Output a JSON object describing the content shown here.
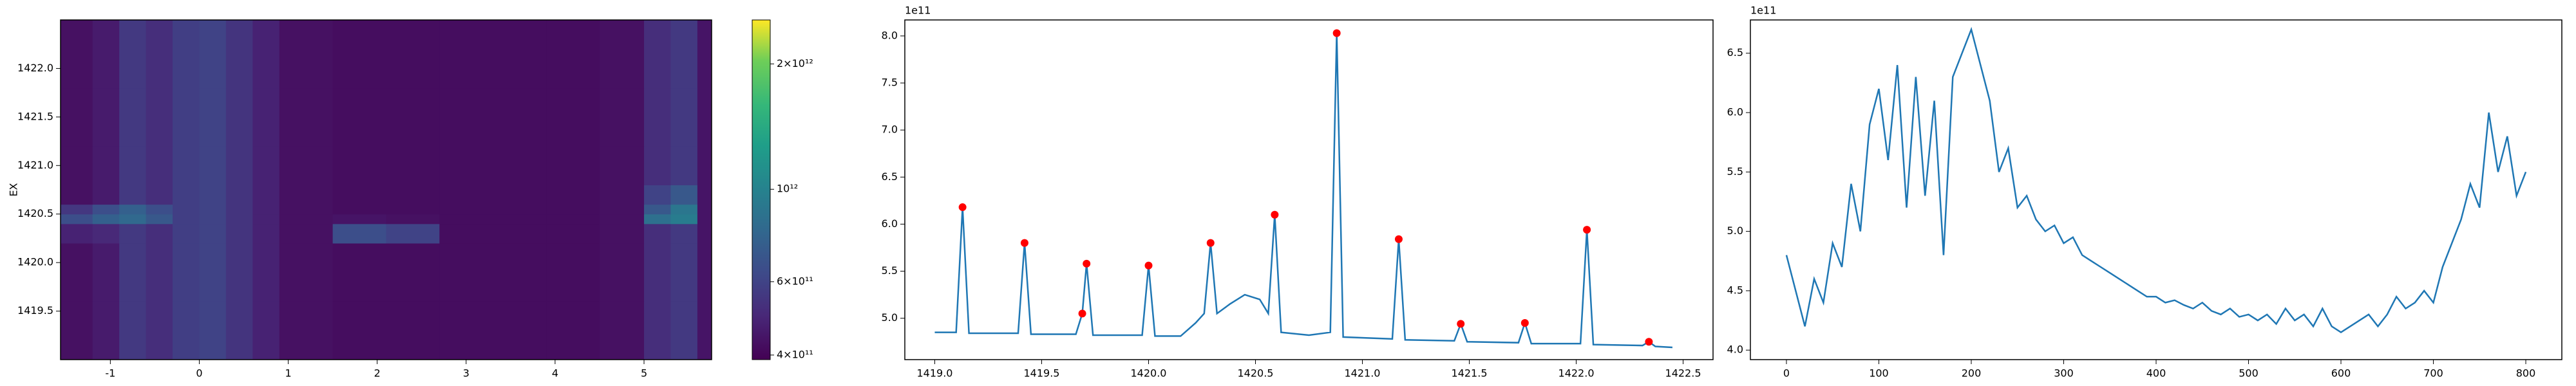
{
  "chart_data": [
    {
      "type": "heatmap",
      "y_label": "EX",
      "colormap": "viridis",
      "colorbar_log": true,
      "xlim": [
        -1.56,
        5.76
      ],
      "ylim": [
        1419.0,
        1422.5
      ],
      "xticks": [
        -1,
        0,
        1,
        2,
        3,
        4,
        5
      ],
      "yticks": [
        1419.5,
        {
          "value": 1420,
          "label": "1420.0"
        },
        1420.5,
        {
          "value": 1421,
          "label": "1421.0"
        },
        1421.5,
        {
          "value": 1422,
          "label": "1422.0"
        }
      ],
      "clim": [
        390000000000.0,
        2550000000000.0
      ],
      "cticks": [
        {
          "value": 400000000000.0,
          "label": "4×10¹¹"
        },
        {
          "value": 600000000000.0,
          "label": "6×10¹¹"
        },
        {
          "value": 1000000000000.0,
          "label": "10¹²"
        },
        {
          "value": 2000000000000.0,
          "label": "2×10¹²"
        }
      ],
      "x_edges": [
        -1.56,
        -1.2,
        -0.9,
        -0.6,
        -0.3,
        0,
        0.3,
        0.6,
        0.9,
        1.5,
        2.1,
        2.7,
        3.3,
        3.9,
        4.5,
        5.0,
        5.3,
        5.6,
        5.76
      ],
      "y_edges": [
        1419.0,
        1419.6,
        1420.2,
        1420.4,
        1420.5,
        1420.6,
        1420.8,
        1421.2,
        1421.8,
        1422.5
      ],
      "z": [
        [
          430000000000.0,
          460000000000.0,
          560000000000.0,
          520000000000.0,
          580000000000.0,
          600000000000.0,
          540000000000.0,
          480000000000.0,
          430000000000.0,
          420000000000.0,
          420000000000.0,
          420000000000.0,
          420000000000.0,
          420000000000.0,
          430000000000.0,
          520000000000.0,
          560000000000.0,
          440000000000.0
        ],
        [
          430000000000.0,
          460000000000.0,
          560000000000.0,
          520000000000.0,
          580000000000.0,
          600000000000.0,
          540000000000.0,
          480000000000.0,
          430000000000.0,
          420000000000.0,
          420000000000.0,
          420000000000.0,
          420000000000.0,
          420000000000.0,
          430000000000.0,
          520000000000.0,
          560000000000.0,
          440000000000.0
        ],
        [
          480000000000.0,
          500000000000.0,
          560000000000.0,
          520000000000.0,
          580000000000.0,
          600000000000.0,
          540000000000.0,
          480000000000.0,
          430000000000.0,
          650000000000.0,
          600000000000.0,
          420000000000.0,
          420000000000.0,
          420000000000.0,
          430000000000.0,
          520000000000.0,
          560000000000.0,
          440000000000.0
        ],
        [
          650000000000.0,
          750000000000.0,
          800000000000.0,
          700000000000.0,
          580000000000.0,
          600000000000.0,
          540000000000.0,
          480000000000.0,
          430000000000.0,
          440000000000.0,
          430000000000.0,
          420000000000.0,
          420000000000.0,
          420000000000.0,
          430000000000.0,
          850000000000.0,
          950000000000.0,
          440000000000.0
        ],
        [
          550000000000.0,
          650000000000.0,
          750000000000.0,
          650000000000.0,
          580000000000.0,
          600000000000.0,
          540000000000.0,
          480000000000.0,
          430000000000.0,
          420000000000.0,
          420000000000.0,
          420000000000.0,
          420000000000.0,
          420000000000.0,
          430000000000.0,
          700000000000.0,
          900000000000.0,
          440000000000.0
        ],
        [
          430000000000.0,
          460000000000.0,
          560000000000.0,
          520000000000.0,
          580000000000.0,
          600000000000.0,
          540000000000.0,
          480000000000.0,
          430000000000.0,
          420000000000.0,
          420000000000.0,
          420000000000.0,
          420000000000.0,
          420000000000.0,
          430000000000.0,
          600000000000.0,
          700000000000.0,
          440000000000.0
        ],
        [
          430000000000.0,
          460000000000.0,
          560000000000.0,
          520000000000.0,
          580000000000.0,
          600000000000.0,
          540000000000.0,
          480000000000.0,
          430000000000.0,
          420000000000.0,
          420000000000.0,
          420000000000.0,
          420000000000.0,
          420000000000.0,
          430000000000.0,
          520000000000.0,
          560000000000.0,
          440000000000.0
        ],
        [
          430000000000.0,
          460000000000.0,
          560000000000.0,
          520000000000.0,
          580000000000.0,
          600000000000.0,
          540000000000.0,
          480000000000.0,
          430000000000.0,
          420000000000.0,
          420000000000.0,
          420000000000.0,
          420000000000.0,
          420000000000.0,
          430000000000.0,
          520000000000.0,
          560000000000.0,
          440000000000.0
        ],
        [
          430000000000.0,
          460000000000.0,
          560000000000.0,
          520000000000.0,
          580000000000.0,
          600000000000.0,
          540000000000.0,
          480000000000.0,
          430000000000.0,
          420000000000.0,
          420000000000.0,
          420000000000.0,
          420000000000.0,
          420000000000.0,
          430000000000.0,
          520000000000.0,
          560000000000.0,
          440000000000.0
        ]
      ]
    },
    {
      "type": "line",
      "y_offset": "1e11",
      "xlim": [
        1418.86,
        1422.64
      ],
      "ylim": [
        4.56,
        8.17
      ],
      "xticks": [
        {
          "value": 1419,
          "label": "1419.0"
        },
        1419.5,
        {
          "value": 1420,
          "label": "1420.0"
        },
        1420.5,
        {
          "value": 1421,
          "label": "1421.0"
        },
        1421.5,
        {
          "value": 1422,
          "label": "1422.0"
        },
        1422.5
      ],
      "yticks": [
        {
          "value": 5,
          "label": "5.0"
        },
        5.5,
        {
          "value": 6,
          "label": "6.0"
        },
        6.5,
        {
          "value": 7,
          "label": "7.0"
        },
        7.5,
        {
          "value": 8,
          "label": "8.0"
        }
      ],
      "series": [
        {
          "color": "#1f77b4",
          "x": [
            1419.0,
            1419.1,
            1419.13,
            1419.16,
            1419.39,
            1419.42,
            1419.45,
            1419.66,
            1419.69,
            1419.71,
            1419.74,
            1419.97,
            1420.0,
            1420.03,
            1420.15,
            1420.22,
            1420.26,
            1420.29,
            1420.32,
            1420.38,
            1420.45,
            1420.52,
            1420.56,
            1420.59,
            1420.62,
            1420.75,
            1420.85,
            1420.88,
            1420.91,
            1421.14,
            1421.17,
            1421.2,
            1421.43,
            1421.46,
            1421.49,
            1421.73,
            1421.76,
            1421.79,
            1422.02,
            1422.05,
            1422.08,
            1422.31,
            1422.34,
            1422.37,
            1422.45
          ],
          "values": [
            4.85,
            4.85,
            6.18,
            4.84,
            4.84,
            5.8,
            4.83,
            4.83,
            5.05,
            5.58,
            4.82,
            4.82,
            5.56,
            4.81,
            4.81,
            4.95,
            5.05,
            5.8,
            5.05,
            5.15,
            5.25,
            5.2,
            5.05,
            6.1,
            4.85,
            4.82,
            4.85,
            8.03,
            4.8,
            4.78,
            5.84,
            4.77,
            4.76,
            4.94,
            4.75,
            4.74,
            4.95,
            4.73,
            4.73,
            5.94,
            4.72,
            4.71,
            4.75,
            4.7,
            4.69
          ]
        }
      ],
      "peaks": {
        "color": "red",
        "x": [
          1419.13,
          1419.42,
          1419.69,
          1419.71,
          1420.0,
          1420.29,
          1420.59,
          1420.88,
          1421.17,
          1421.46,
          1421.76,
          1422.05,
          1422.34
        ],
        "values": [
          6.18,
          5.8,
          5.05,
          5.58,
          5.56,
          5.8,
          6.1,
          8.03,
          5.84,
          4.94,
          4.95,
          5.94,
          4.75
        ]
      }
    },
    {
      "type": "line",
      "y_offset": "1e11",
      "xlim": [
        -39,
        839
      ],
      "ylim": [
        3.92,
        6.78
      ],
      "xticks": [
        0,
        100,
        200,
        300,
        400,
        500,
        600,
        700,
        800
      ],
      "yticks": [
        {
          "value": 4,
          "label": "4.0"
        },
        4.5,
        {
          "value": 5,
          "label": "5.0"
        },
        5.5,
        {
          "value": 6,
          "label": "6.0"
        },
        6.5
      ],
      "series": [
        {
          "color": "#1f77b4",
          "x": [
            0,
            10,
            20,
            30,
            40,
            50,
            60,
            70,
            80,
            90,
            100,
            110,
            120,
            130,
            140,
            150,
            160,
            170,
            180,
            190,
            200,
            210,
            220,
            230,
            240,
            250,
            260,
            270,
            280,
            290,
            300,
            310,
            320,
            330,
            340,
            350,
            360,
            370,
            380,
            390,
            400,
            410,
            420,
            430,
            440,
            450,
            460,
            470,
            480,
            490,
            500,
            510,
            520,
            530,
            540,
            550,
            560,
            570,
            580,
            590,
            600,
            610,
            620,
            630,
            640,
            650,
            660,
            670,
            680,
            690,
            700,
            710,
            720,
            730,
            740,
            750,
            760,
            770,
            780,
            790,
            800
          ],
          "values": [
            4.8,
            4.5,
            4.2,
            4.6,
            4.4,
            4.9,
            4.7,
            5.4,
            5.0,
            5.9,
            6.2,
            5.6,
            6.4,
            5.2,
            6.3,
            5.3,
            6.1,
            4.8,
            6.3,
            6.5,
            6.7,
            6.4,
            6.1,
            5.5,
            5.7,
            5.2,
            5.3,
            5.1,
            5.0,
            5.05,
            4.9,
            4.95,
            4.8,
            4.75,
            4.7,
            4.65,
            4.6,
            4.55,
            4.5,
            4.45,
            4.45,
            4.4,
            4.42,
            4.38,
            4.35,
            4.4,
            4.33,
            4.3,
            4.35,
            4.28,
            4.3,
            4.25,
            4.3,
            4.22,
            4.35,
            4.25,
            4.3,
            4.2,
            4.35,
            4.2,
            4.15,
            4.2,
            4.25,
            4.3,
            4.2,
            4.3,
            4.45,
            4.35,
            4.4,
            4.5,
            4.4,
            4.7,
            4.9,
            5.1,
            5.4,
            5.2,
            6.0,
            5.5,
            5.8,
            5.3,
            5.5
          ]
        }
      ]
    }
  ]
}
